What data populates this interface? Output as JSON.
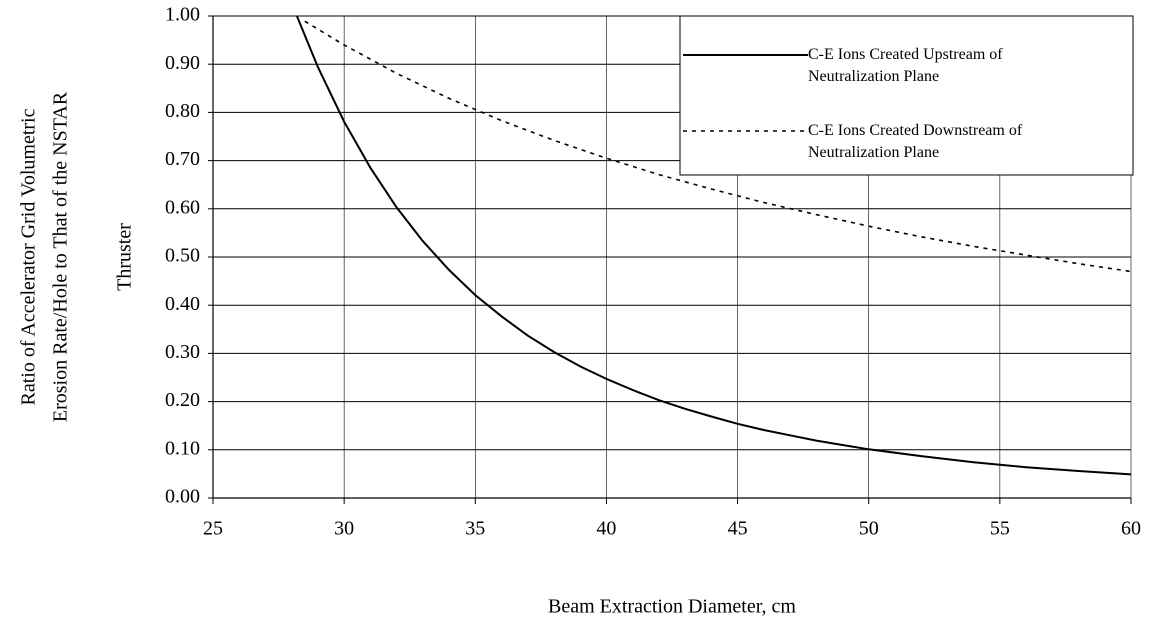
{
  "chart_data": {
    "type": "line",
    "xlabel": "Beam Extraction Diameter, cm",
    "ylabel": [
      "Ratio of Accelerator Grid Volumetric",
      "Erosion Rate/Hole to That of the NSTAR",
      "Thruster"
    ],
    "xlim": [
      25,
      60
    ],
    "xticks": [
      25,
      30,
      35,
      40,
      45,
      50,
      55,
      60
    ],
    "ylim": [
      0,
      1
    ],
    "yticks": [
      {
        "value": 0,
        "label": "0.00"
      },
      {
        "value": 0.1,
        "label": "0.10"
      },
      {
        "value": 0.2,
        "label": "0.20"
      },
      {
        "value": 0.3,
        "label": "0.30"
      },
      {
        "value": 0.4,
        "label": "0.40"
      },
      {
        "value": 0.5,
        "label": "0.50"
      },
      {
        "value": 0.6,
        "label": "0.60"
      },
      {
        "value": 0.7,
        "label": "0.70"
      },
      {
        "value": 0.8,
        "label": "0.80"
      },
      {
        "value": 0.9,
        "label": "0.90"
      },
      {
        "value": 1,
        "label": "1.00"
      }
    ],
    "grid": true,
    "legend": "upper right",
    "series": [
      {
        "name": "C-E Ions Created Upstream of\nNeutralization Plane",
        "color": "#000000",
        "style": "solid",
        "x": [
          28.2,
          29,
          30,
          31,
          32,
          33,
          34,
          35,
          36,
          37,
          38,
          39,
          40,
          41,
          42,
          43,
          44,
          45,
          46,
          47,
          48,
          49,
          50,
          52,
          54,
          56,
          58,
          60
        ],
        "values": [
          1.0,
          0.894,
          0.781,
          0.685,
          0.603,
          0.533,
          0.473,
          0.421,
          0.377,
          0.337,
          0.303,
          0.273,
          0.247,
          0.224,
          0.203,
          0.185,
          0.169,
          0.154,
          0.141,
          0.13,
          0.119,
          0.11,
          0.101,
          0.087,
          0.074,
          0.064,
          0.056,
          0.049
        ]
      },
      {
        "name": "C-E Ions Created Downstream of\nNeutralization Plane",
        "color": "#000000",
        "style": "dashed",
        "x": [
          28.5,
          30,
          32,
          34,
          36,
          38,
          40,
          42,
          44,
          46,
          48,
          50,
          52,
          54,
          56,
          58,
          60
        ],
        "values": [
          0.989,
          0.94,
          0.881,
          0.829,
          0.783,
          0.742,
          0.705,
          0.671,
          0.641,
          0.613,
          0.588,
          0.564,
          0.542,
          0.522,
          0.504,
          0.486,
          0.47
        ]
      }
    ]
  }
}
